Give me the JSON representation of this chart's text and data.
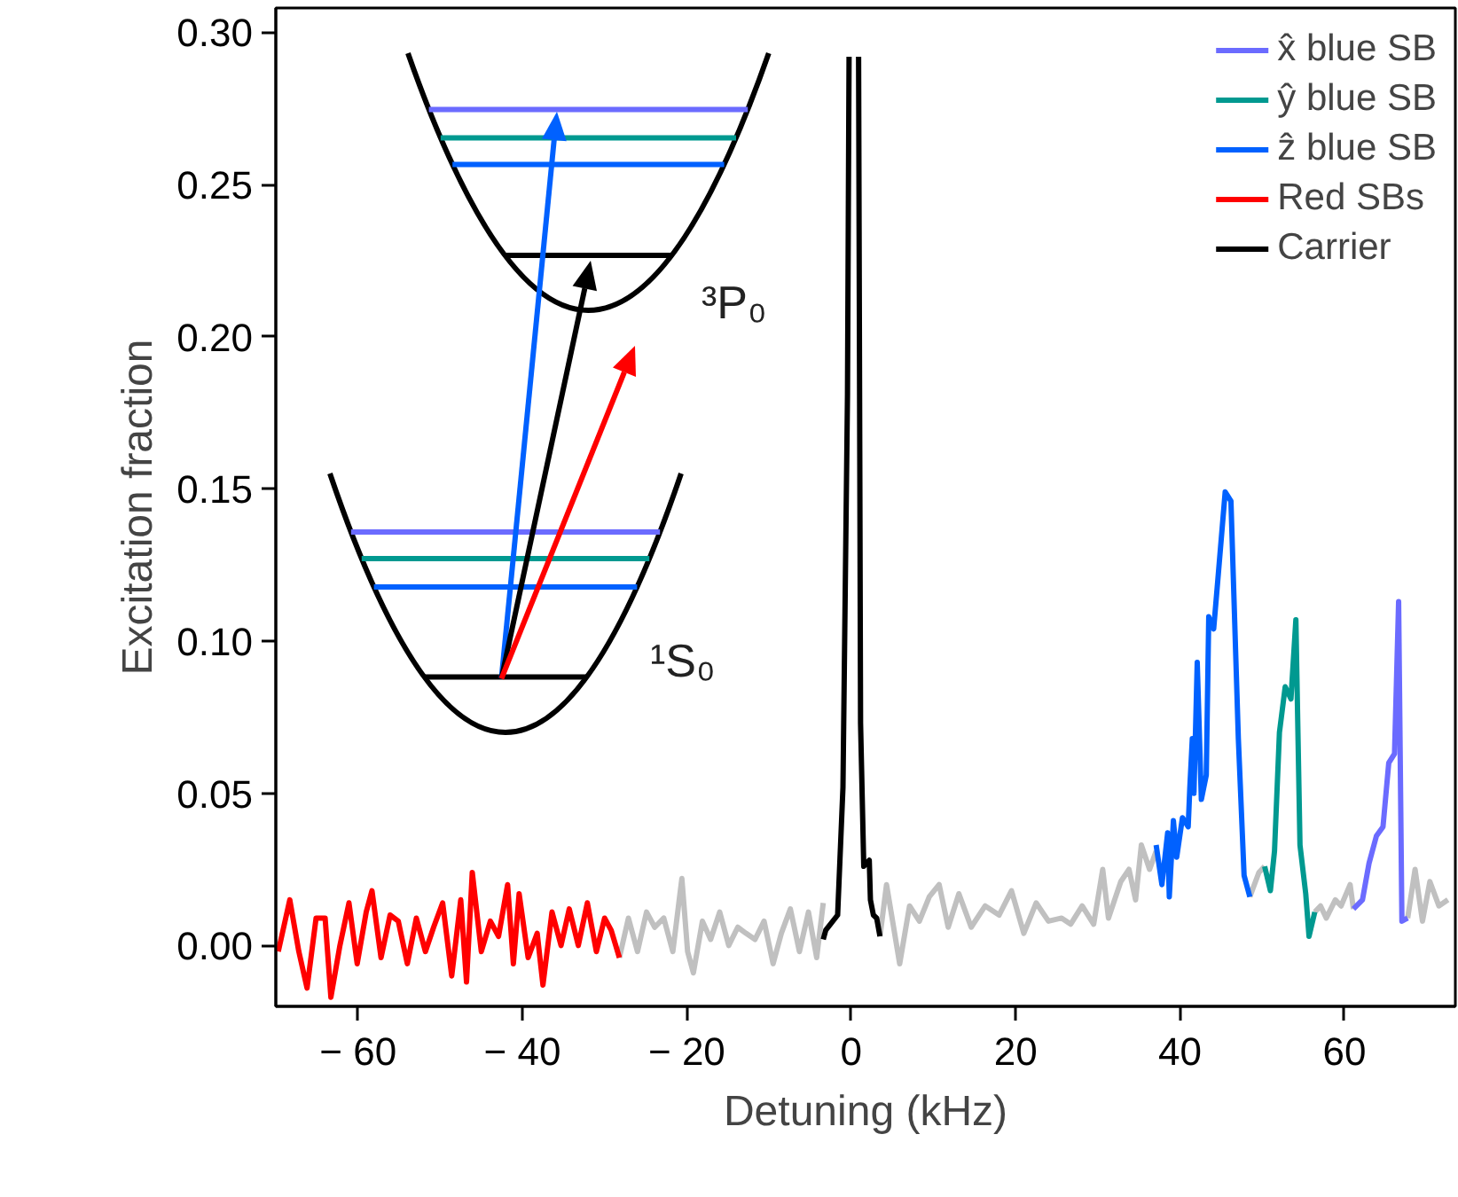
{
  "chart_data": {
    "type": "line",
    "xlabel": "Detuning (kHz)",
    "ylabel": "Excitation fraction",
    "xlim": [
      -70,
      73.5
    ],
    "ylim": [
      -0.02,
      0.308
    ],
    "xticks": [
      {
        "value": -60,
        "label": "− 60"
      },
      {
        "value": -40,
        "label": "− 40"
      },
      {
        "value": -20,
        "label": "− 20"
      },
      0,
      20,
      40,
      60
    ],
    "yticks": [
      {
        "value": 0,
        "label": "0.00"
      },
      {
        "value": 0.05,
        "label": "0.05"
      },
      {
        "value": 0.1,
        "label": "0.10"
      },
      {
        "value": 0.15,
        "label": "0.15"
      },
      {
        "value": 0.2,
        "label": "0.20"
      },
      {
        "value": 0.25,
        "label": "0.25"
      },
      {
        "value": 0.3,
        "label": "0.30"
      }
    ],
    "grid": false,
    "legend": "top right",
    "marker": "none",
    "line_style": "solid",
    "annotations": [
      "³P₀",
      "¹S₀"
    ],
    "series": [
      {
        "color": "#c0c0c0",
        "x": [
          -28.2,
          -27.1,
          -26.0,
          -24.9,
          -23.9,
          -22.8,
          -21.7,
          -20.6,
          -19.9,
          -19.2,
          -18.1,
          -17.1,
          -16.0,
          -14.9,
          -13.8,
          -12.8,
          -11.7,
          -10.6,
          -9.5,
          -8.5,
          -7.4,
          -6.3,
          -5.2,
          -4.2,
          -3.4,
          null,
          3.5,
          4.3,
          5.9,
          7.1,
          8.3,
          9.5,
          10.7,
          11.8,
          13.1,
          14.6,
          16.3,
          18.0,
          19.5,
          21.0,
          22.5,
          24.0,
          25.6,
          26.7,
          28.1,
          29.5,
          30.6,
          31.3,
          32.8,
          33.8,
          34.6,
          35.3,
          36.3,
          37.1,
          null,
          48.5,
          49.6,
          50.3,
          null,
          56.4,
          57.1,
          57.8,
          58.9,
          59.6,
          60.7,
          61.1,
          null,
          67.7,
          68.6,
          69.5,
          70.4,
          71.5,
          72.6
        ],
        "values": [
          -0.004,
          0.009,
          -0.002,
          0.011,
          0.006,
          0.009,
          -0.002,
          0.022,
          -0.002,
          -0.009,
          0.008,
          0.002,
          0.011,
          0.0,
          0.006,
          0.004,
          0.002,
          0.008,
          -0.006,
          0.004,
          0.012,
          -0.002,
          0.011,
          -0.004,
          0.014,
          null,
          0.003,
          0.02,
          -0.006,
          0.013,
          0.008,
          0.016,
          0.02,
          0.006,
          0.017,
          0.006,
          0.013,
          0.01,
          0.018,
          0.004,
          0.014,
          0.008,
          0.009,
          0.007,
          0.013,
          0.007,
          0.025,
          0.009,
          0.021,
          0.025,
          0.015,
          0.033,
          0.025,
          0.031,
          null,
          0.016,
          0.024,
          0.026,
          null,
          0.011,
          0.013,
          0.009,
          0.015,
          0.013,
          0.02,
          0.012,
          null,
          0.009,
          0.025,
          0.008,
          0.021,
          0.013,
          0.015
        ]
      },
      {
        "name": "x̂ blue SB",
        "color": "#6b6bff",
        "x": [
          61.1,
          62.2,
          63.0,
          63.9,
          64.7,
          65.4,
          66.1,
          66.6,
          67.0,
          67.7
        ],
        "values": [
          0.012,
          0.015,
          0.027,
          0.036,
          0.039,
          0.06,
          0.063,
          0.113,
          0.008,
          0.009
        ]
      },
      {
        "name": "ŷ blue SB",
        "color": "#009990",
        "x": [
          50.3,
          51.0,
          51.5,
          52.1,
          52.8,
          53.5,
          54.1,
          54.6,
          55.3,
          55.7,
          56.4
        ],
        "values": [
          0.026,
          0.018,
          0.031,
          0.07,
          0.085,
          0.081,
          0.107,
          0.033,
          0.017,
          0.003,
          0.011
        ]
      },
      {
        "name": "ẑ blue SB",
        "color": "#0061ff",
        "x": [
          37.1,
          37.8,
          38.5,
          38.7,
          39.2,
          39.6,
          40.3,
          41.0,
          41.2,
          41.5,
          41.7,
          42.1,
          42.6,
          43.2,
          43.5,
          44.1,
          44.6,
          45.5,
          46.2,
          47.1,
          47.8,
          48.5
        ],
        "values": [
          0.033,
          0.02,
          0.037,
          0.016,
          0.041,
          0.029,
          0.042,
          0.039,
          0.052,
          0.068,
          0.05,
          0.093,
          0.048,
          0.056,
          0.108,
          0.104,
          0.12,
          0.149,
          0.146,
          0.068,
          0.023,
          0.016
        ]
      },
      {
        "name": "Red SBs",
        "color": "#ff0000",
        "x": [
          -69.7,
          -68.3,
          -67.2,
          -66.2,
          -65.1,
          -64.0,
          -63.3,
          -62.2,
          -61.1,
          -60.1,
          -59.0,
          -58.3,
          -57.2,
          -56.1,
          -55.1,
          -54.0,
          -52.9,
          -51.8,
          -50.8,
          -49.7,
          -48.6,
          -47.5,
          -46.8,
          -46.1,
          -45.0,
          -43.9,
          -42.9,
          -41.8,
          -41.1,
          -40.4,
          -39.3,
          -38.2,
          -37.5,
          -36.4,
          -35.3,
          -34.3,
          -33.2,
          -32.1,
          -31.0,
          -30.0,
          -29.2,
          -28.2
        ],
        "values": [
          -0.002,
          0.015,
          -0.002,
          -0.014,
          0.009,
          0.009,
          -0.017,
          0.0,
          0.014,
          -0.006,
          0.011,
          0.018,
          -0.004,
          0.01,
          0.008,
          -0.006,
          0.009,
          -0.002,
          0.006,
          0.014,
          -0.01,
          0.015,
          -0.012,
          0.024,
          -0.002,
          0.008,
          0.003,
          0.02,
          -0.006,
          0.017,
          -0.004,
          0.004,
          -0.013,
          0.011,
          0.0,
          0.012,
          0.0,
          0.014,
          -0.002,
          0.009,
          0.005,
          -0.004
        ]
      },
      {
        "name": "Carrier",
        "color": "#000000",
        "x": [
          -3.4,
          -3.1,
          -1.65,
          -1.0,
          -0.45,
          -0.26,
          0.2,
          0.9,
          1.14,
          1.53,
          2.2,
          2.34,
          2.7,
          3.1,
          3.5
        ],
        "values": [
          0.002,
          0.005,
          0.01,
          0.052,
          0.181,
          0.292,
          null,
          0.292,
          0.073,
          0.026,
          0.028,
          0.015,
          0.01,
          0.009,
          0.003
        ]
      }
    ]
  }
}
